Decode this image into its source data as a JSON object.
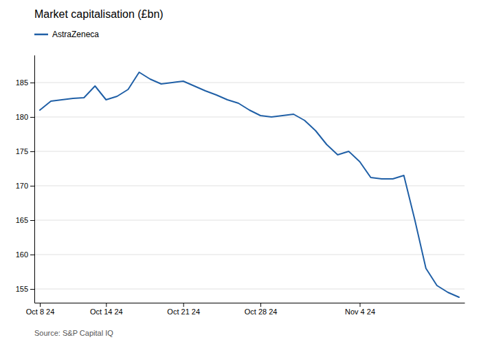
{
  "chart_data": {
    "type": "line",
    "title": "Market capitalisation (£bn)",
    "source": "Source: S&P Capital IQ",
    "categories": [
      "Oct 8 24",
      null,
      null,
      null,
      null,
      null,
      "Oct 14 24",
      null,
      null,
      null,
      null,
      null,
      null,
      "Oct 21 24",
      null,
      null,
      null,
      null,
      null,
      null,
      "Oct 28 24",
      null,
      null,
      null,
      null,
      null,
      null,
      null,
      null,
      "Nov 4 24",
      null,
      null,
      null,
      null,
      null,
      null,
      null,
      null,
      null
    ],
    "series": [
      {
        "name": "AstraZeneca",
        "color": "#1f5fa6",
        "values": [
          181.0,
          182.3,
          182.5,
          182.7,
          182.8,
          184.5,
          182.5,
          183.0,
          184.0,
          186.5,
          185.5,
          184.8,
          185.0,
          185.2,
          184.5,
          183.8,
          183.2,
          182.5,
          182.0,
          181.0,
          180.2,
          180.0,
          180.2,
          180.4,
          179.5,
          178.0,
          176.0,
          174.5,
          175.0,
          173.5,
          171.2,
          171.0,
          171.0,
          171.5,
          165.0,
          158.0,
          155.5,
          154.5,
          153.8
        ]
      }
    ],
    "ylim": [
      153,
      189
    ],
    "yticks": [
      155,
      160,
      165,
      170,
      175,
      180,
      185
    ],
    "grid": true,
    "legend": "upper left"
  }
}
